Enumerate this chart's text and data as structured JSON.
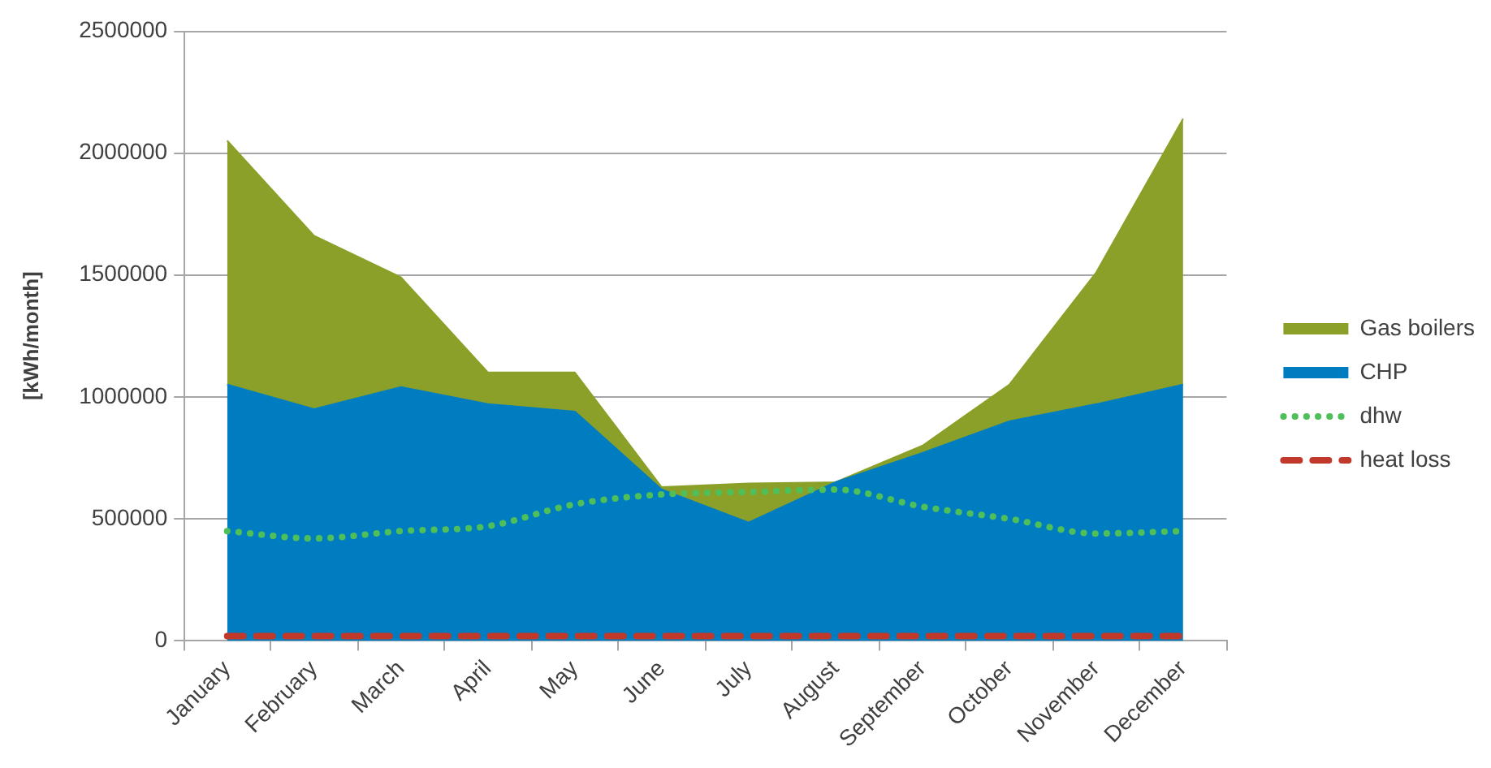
{
  "chart_data": {
    "type": "area",
    "stacked": true,
    "categories": [
      "January",
      "February",
      "March",
      "April",
      "May",
      "June",
      "July",
      "August",
      "September",
      "October",
      "November",
      "December"
    ],
    "series": [
      {
        "name": "CHP",
        "color": "#007dc0",
        "values": [
          1050000,
          950000,
          1040000,
          970000,
          940000,
          620000,
          485000,
          650000,
          770000,
          900000,
          970000,
          1050000
        ]
      },
      {
        "name": "Gas boilers",
        "color": "#8aa028",
        "values": [
          1000000,
          710000,
          450000,
          130000,
          160000,
          10000,
          160000,
          0,
          30000,
          150000,
          540000,
          1090000
        ]
      },
      {
        "name": "dhw",
        "type": "line",
        "line_style": "dotted",
        "color": "#4fbf5a",
        "values": [
          450000,
          420000,
          450000,
          470000,
          560000,
          600000,
          610000,
          620000,
          550000,
          500000,
          440000,
          450000
        ]
      },
      {
        "name": "heat loss",
        "type": "line",
        "line_style": "dashed",
        "color": "#c0392b",
        "values": [
          20000,
          20000,
          20000,
          20000,
          20000,
          20000,
          20000,
          20000,
          20000,
          20000,
          20000,
          20000
        ]
      }
    ],
    "ylabel": "[kWh/month]",
    "ylim": [
      0,
      2500000
    ],
    "yticks": [
      0,
      500000,
      1000000,
      1500000,
      2000000,
      2500000
    ],
    "grid": "y",
    "legend": "right",
    "marker": "none"
  }
}
